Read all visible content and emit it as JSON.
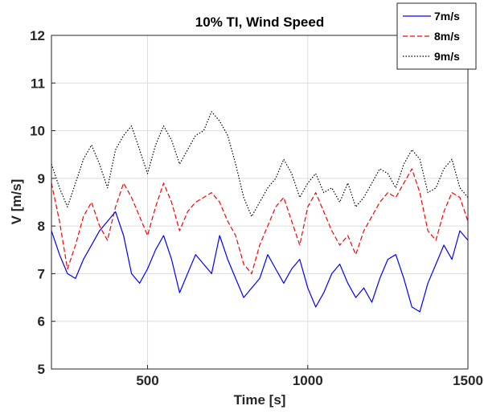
{
  "chart_data": {
    "type": "line",
    "title": "10% TI, Wind Speed",
    "xlabel": "Time [s]",
    "ylabel": "V [m/s]",
    "xlim": [
      200,
      1500
    ],
    "ylim": [
      5,
      12
    ],
    "xticks": [
      500,
      1000,
      1500
    ],
    "yticks": [
      5,
      6,
      7,
      8,
      9,
      10,
      11,
      12
    ],
    "grid": true,
    "legend_position": "top-right",
    "x": [
      200,
      225,
      250,
      275,
      300,
      325,
      350,
      375,
      400,
      425,
      450,
      475,
      500,
      525,
      550,
      575,
      600,
      625,
      650,
      675,
      700,
      725,
      750,
      775,
      800,
      825,
      850,
      875,
      900,
      925,
      950,
      975,
      1000,
      1025,
      1050,
      1075,
      1100,
      1125,
      1150,
      1175,
      1200,
      1225,
      1250,
      1275,
      1300,
      1325,
      1350,
      1375,
      1400,
      1425,
      1450,
      1475,
      1500
    ],
    "series": [
      {
        "name": "7m/s",
        "color": "#0000ff",
        "dash": "solid",
        "values": [
          7.9,
          7.4,
          7.0,
          6.9,
          7.3,
          7.6,
          7.9,
          8.1,
          8.3,
          7.8,
          7.0,
          6.8,
          7.1,
          7.5,
          7.8,
          7.3,
          6.6,
          7.0,
          7.4,
          7.2,
          7.0,
          7.8,
          7.3,
          6.9,
          6.5,
          6.7,
          6.9,
          7.4,
          7.1,
          6.8,
          7.1,
          7.3,
          6.7,
          6.3,
          6.6,
          7.0,
          7.2,
          6.8,
          6.5,
          6.7,
          6.4,
          6.9,
          7.3,
          7.4,
          6.9,
          6.3,
          6.2,
          6.8,
          7.2,
          7.6,
          7.3,
          7.9,
          7.7
        ]
      },
      {
        "name": "8m/s",
        "color": "#ff0000",
        "dash": "dashed",
        "values": [
          8.9,
          8.1,
          7.1,
          7.6,
          8.2,
          8.5,
          8.0,
          7.7,
          8.4,
          8.9,
          8.6,
          8.2,
          7.8,
          8.4,
          8.9,
          8.5,
          7.9,
          8.3,
          8.5,
          8.6,
          8.7,
          8.5,
          8.1,
          7.8,
          7.2,
          7.0,
          7.6,
          8.0,
          8.4,
          8.6,
          8.1,
          7.6,
          8.4,
          8.7,
          8.3,
          7.9,
          7.6,
          7.8,
          7.4,
          7.9,
          8.2,
          8.5,
          8.7,
          8.6,
          8.9,
          9.2,
          8.7,
          7.9,
          7.7,
          8.3,
          8.7,
          8.6,
          8.1
        ]
      },
      {
        "name": "9m/s",
        "color": "#000000",
        "dash": "dotted",
        "values": [
          9.3,
          8.8,
          8.4,
          8.9,
          9.4,
          9.7,
          9.3,
          8.8,
          9.6,
          9.9,
          10.1,
          9.6,
          9.1,
          9.7,
          10.1,
          9.8,
          9.3,
          9.6,
          9.9,
          10.0,
          10.4,
          10.2,
          9.9,
          9.3,
          8.6,
          8.2,
          8.5,
          8.8,
          9.0,
          9.4,
          9.1,
          8.6,
          8.9,
          9.1,
          8.7,
          8.8,
          8.5,
          8.9,
          8.4,
          8.6,
          8.9,
          9.2,
          9.1,
          8.8,
          9.3,
          9.6,
          9.4,
          8.7,
          8.8,
          9.2,
          9.4,
          8.8,
          8.6
        ]
      }
    ]
  }
}
